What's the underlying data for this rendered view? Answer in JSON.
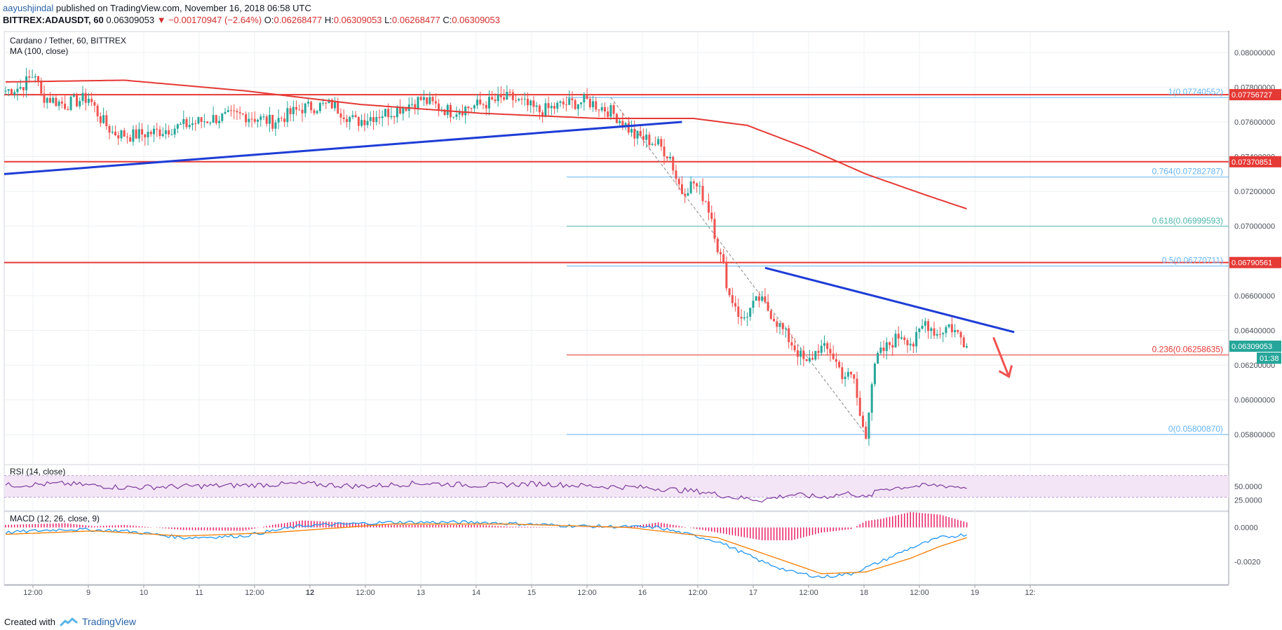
{
  "header": {
    "author": "aayushjindal",
    "published": "published on TradingView.com, November 16, 2018 06:58 UTC",
    "symbol": "BITTREX:ADAUSDT, 60",
    "last": "0.06309053",
    "change": "▼ −0.00170947 (−2.64%)",
    "o_label": "O:",
    "o_value": "0.06268477",
    "h_label": "H:",
    "h_value": "0.06309053",
    "l_label": "L:",
    "l_value": "0.06268477",
    "c_label": "C:",
    "c_value": "0.06309053"
  },
  "legend": {
    "title": "Cardano / Tether, 60, BITTREX",
    "ma": "MA (100, close)",
    "rsi": "RSI (14, close)",
    "macd": "MACD (12, 26, close, 9)"
  },
  "footer": {
    "created_with": "Created with",
    "brand": "TradingView"
  },
  "colors": {
    "up": "#26a69a",
    "down": "#ef5350",
    "ma": "#e53935",
    "trend": "#1e3dd6",
    "rsi": "#7e3a9e",
    "rsi_band": "#f3e5f5",
    "macd": "#2196f3",
    "signal": "#f57c00",
    "hist": "#e91e63",
    "hline": "#e53935",
    "fib_teal": "#4db6ac",
    "fib_blue": "#64b5f6"
  },
  "chart_data": {
    "type": "candlestick",
    "instrument": "Cardano / Tether",
    "x_ticks": [
      "12:00",
      "9",
      "10",
      "11",
      "12:00",
      "12",
      "12:00",
      "13",
      "14",
      "15",
      "12:00",
      "16",
      "12:00",
      "17",
      "12:00",
      "18",
      "12:00",
      "19",
      "12:"
    ],
    "y_ticks": [
      "0.08000000",
      "0.07800000",
      "0.07600000",
      "0.07400000",
      "0.07200000",
      "0.07000000",
      "0.06600000",
      "0.06400000",
      "0.06200000",
      "0.06000000",
      "0.05800000"
    ],
    "y_range": [
      0.0568,
      0.081
    ],
    "price_anchors": [
      [
        0,
        0.0778
      ],
      [
        5,
        0.078
      ],
      [
        10,
        0.0788
      ],
      [
        12,
        0.0775
      ],
      [
        20,
        0.077
      ],
      [
        28,
        0.0774
      ],
      [
        32,
        0.0762
      ],
      [
        36,
        0.0754
      ],
      [
        42,
        0.0752
      ],
      [
        50,
        0.0754
      ],
      [
        60,
        0.0758
      ],
      [
        70,
        0.0762
      ],
      [
        80,
        0.0764
      ],
      [
        90,
        0.076
      ],
      [
        100,
        0.0768
      ],
      [
        110,
        0.077
      ],
      [
        118,
        0.076
      ],
      [
        125,
        0.0764
      ],
      [
        130,
        0.0766
      ],
      [
        140,
        0.0773
      ],
      [
        150,
        0.0766
      ],
      [
        160,
        0.077
      ],
      [
        170,
        0.0774
      ],
      [
        180,
        0.0766
      ],
      [
        188,
        0.077
      ],
      [
        196,
        0.0772
      ],
      [
        204,
        0.0766
      ],
      [
        208,
        0.076
      ],
      [
        212,
        0.0752
      ],
      [
        216,
        0.075
      ],
      [
        220,
        0.0747
      ],
      [
        224,
        0.074
      ],
      [
        226,
        0.0728
      ],
      [
        228,
        0.072
      ],
      [
        232,
        0.0725
      ],
      [
        236,
        0.0715
      ],
      [
        238,
        0.0705
      ],
      [
        240,
        0.0688
      ],
      [
        242,
        0.0676
      ],
      [
        244,
        0.066
      ],
      [
        246,
        0.0655
      ],
      [
        248,
        0.0645
      ],
      [
        250,
        0.065
      ],
      [
        254,
        0.0658
      ],
      [
        258,
        0.065
      ],
      [
        262,
        0.064
      ],
      [
        266,
        0.063
      ],
      [
        270,
        0.062
      ],
      [
        274,
        0.063
      ],
      [
        278,
        0.0628
      ],
      [
        282,
        0.0615
      ],
      [
        286,
        0.0612
      ],
      [
        288,
        0.059
      ],
      [
        290,
        0.0581
      ],
      [
        292,
        0.061
      ],
      [
        294,
        0.0625
      ],
      [
        298,
        0.0632
      ],
      [
        302,
        0.0638
      ],
      [
        306,
        0.0632
      ],
      [
        310,
        0.0645
      ],
      [
        314,
        0.0638
      ],
      [
        318,
        0.0643
      ],
      [
        322,
        0.0636
      ],
      [
        324,
        0.0631
      ]
    ],
    "total_bars": 325,
    "ma100": [
      [
        0,
        0.0783
      ],
      [
        40,
        0.0784
      ],
      [
        80,
        0.0778
      ],
      [
        120,
        0.077
      ],
      [
        160,
        0.0765
      ],
      [
        200,
        0.0762
      ],
      [
        232,
        0.0762
      ],
      [
        250,
        0.0758
      ],
      [
        270,
        0.0745
      ],
      [
        290,
        0.073
      ],
      [
        310,
        0.0718
      ],
      [
        324,
        0.071
      ]
    ],
    "support_trendline": [
      [
        0,
        0.073
      ],
      [
        228,
        0.076
      ]
    ],
    "resistance_trendline": [
      [
        256,
        0.0676
      ],
      [
        340,
        0.0639
      ]
    ],
    "horizontal_levels": [
      {
        "label": "0.07756727",
        "price": 0.07756727
      },
      {
        "label": "0.07370851",
        "price": 0.07370851
      },
      {
        "label": "0.06790561",
        "price": 0.06790561
      }
    ],
    "fibonacci": [
      {
        "level": "1",
        "value": "0.07740552",
        "price": 0.07740552,
        "color": "fib_blue"
      },
      {
        "level": "0.764",
        "value": "0.07282787",
        "price": 0.07282787,
        "color": "fib_blue"
      },
      {
        "level": "0.618",
        "value": "0.06999593",
        "price": 0.06999593,
        "color": "fib_teal"
      },
      {
        "level": "0.5",
        "value": "0.06770711",
        "price": 0.06770711,
        "color": "fib_blue"
      },
      {
        "level": "0.236",
        "value": "0.06258635",
        "price": 0.06258635,
        "color": "hline"
      },
      {
        "level": "0",
        "value": "0.05800870",
        "price": 0.0580087,
        "color": "fib_blue"
      }
    ],
    "last_price_label": "0.06309053",
    "countdown_label": "01:38",
    "rsi": {
      "y_ticks": [
        "50.0000",
        "25.0000"
      ],
      "range": [
        10,
        85
      ],
      "band": [
        30,
        70
      ],
      "anchors": [
        [
          0,
          52
        ],
        [
          20,
          55
        ],
        [
          40,
          48
        ],
        [
          60,
          50
        ],
        [
          80,
          52
        ],
        [
          100,
          55
        ],
        [
          120,
          50
        ],
        [
          140,
          56
        ],
        [
          160,
          52
        ],
        [
          180,
          55
        ],
        [
          200,
          50
        ],
        [
          215,
          48
        ],
        [
          225,
          44
        ],
        [
          235,
          40
        ],
        [
          245,
          30
        ],
        [
          255,
          25
        ],
        [
          265,
          35
        ],
        [
          275,
          30
        ],
        [
          285,
          38
        ],
        [
          290,
          28
        ],
        [
          295,
          45
        ],
        [
          305,
          50
        ],
        [
          315,
          52
        ],
        [
          324,
          48
        ]
      ]
    },
    "macd": {
      "y_ticks": [
        "0.0000",
        "-0.0020"
      ],
      "range": [
        -0.003,
        0.0006
      ],
      "macd_anchors": [
        [
          0,
          -0.0003
        ],
        [
          20,
          -0.0001
        ],
        [
          40,
          -0.0002
        ],
        [
          60,
          -0.0006
        ],
        [
          80,
          -0.0005
        ],
        [
          100,
          0.0001
        ],
        [
          130,
          0.0003
        ],
        [
          160,
          0.0003
        ],
        [
          190,
          0.0001
        ],
        [
          220,
          0.0
        ],
        [
          240,
          -0.0008
        ],
        [
          255,
          -0.002
        ],
        [
          265,
          -0.0026
        ],
        [
          275,
          -0.0029
        ],
        [
          285,
          -0.0027
        ],
        [
          295,
          -0.002
        ],
        [
          305,
          -0.0012
        ],
        [
          315,
          -0.0006
        ],
        [
          324,
          -0.0004
        ]
      ],
      "signal_anchors": [
        [
          0,
          -0.0004
        ],
        [
          30,
          -0.0002
        ],
        [
          60,
          -0.0005
        ],
        [
          90,
          -0.0003
        ],
        [
          130,
          0.0002
        ],
        [
          170,
          0.0002
        ],
        [
          210,
          0.0
        ],
        [
          240,
          -0.0006
        ],
        [
          260,
          -0.0018
        ],
        [
          275,
          -0.0027
        ],
        [
          290,
          -0.0026
        ],
        [
          305,
          -0.0018
        ],
        [
          315,
          -0.0011
        ],
        [
          324,
          -0.0006
        ]
      ]
    }
  }
}
